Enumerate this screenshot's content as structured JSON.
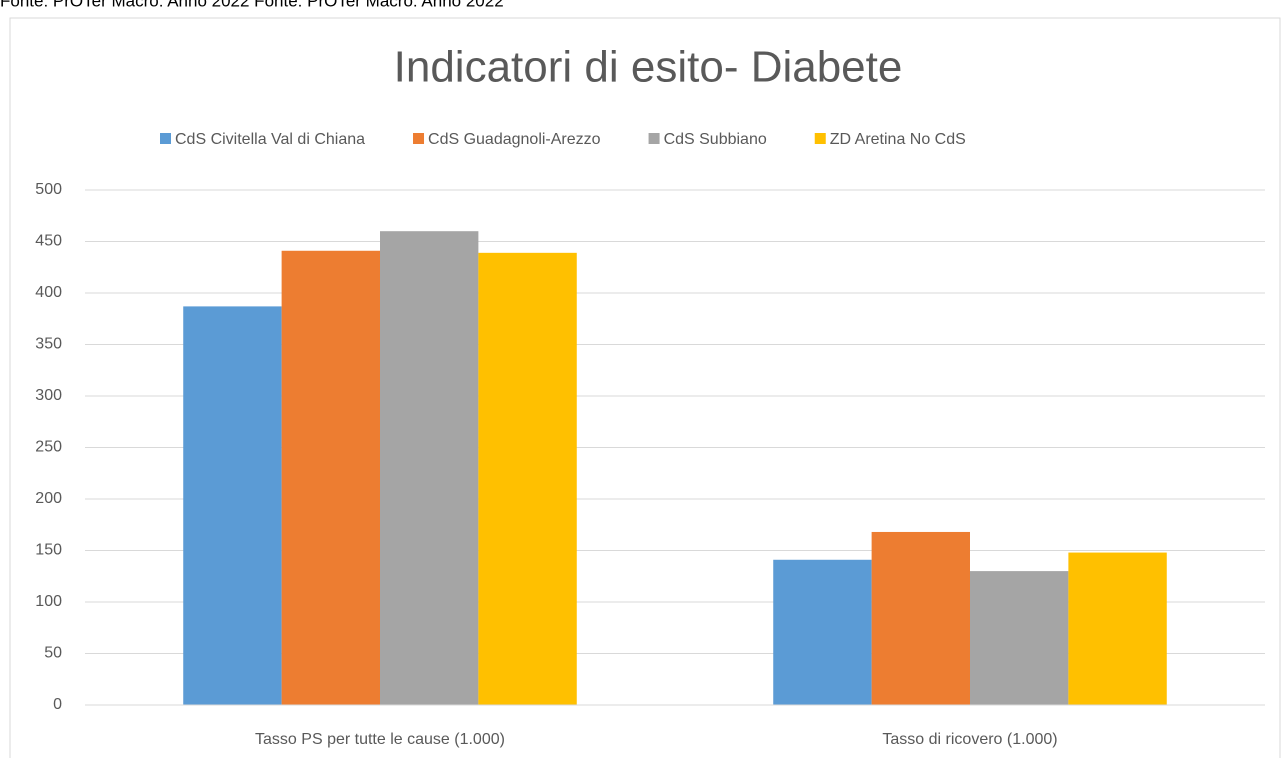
{
  "source": "Fonte: PrOTer Macro: Anno 2022 Fonte: PrOTer Macro: Anno 2022",
  "chart_data": {
    "type": "bar",
    "title": "Indicatori di esito- Diabete",
    "categories": [
      "Tasso PS per tutte le cause (1.000)",
      "Tasso di ricovero (1.000)"
    ],
    "series": [
      {
        "name": "CdS Civitella Val di Chiana",
        "color": "#5b9bd5",
        "values": [
          387,
          141
        ]
      },
      {
        "name": "CdS Guadagnoli-Arezzo",
        "color": "#ed7d31",
        "values": [
          441,
          168
        ]
      },
      {
        "name": "CdS Subbiano",
        "color": "#a5a5a5",
        "values": [
          460,
          130
        ]
      },
      {
        "name": "ZD Aretina No CdS",
        "color": "#ffc000",
        "values": [
          439,
          148
        ]
      }
    ],
    "ylim": [
      0,
      500
    ],
    "yticks": [
      0,
      50,
      100,
      150,
      200,
      250,
      300,
      350,
      400,
      450,
      500
    ],
    "grid": true,
    "legend": "top"
  }
}
